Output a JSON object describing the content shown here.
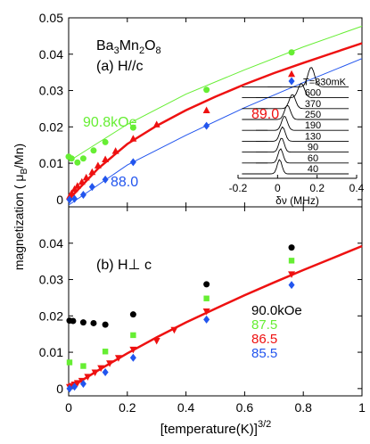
{
  "chart_data": [
    {
      "type": "scatter",
      "panel_label": "(a) H//c",
      "compound": {
        "base": "Ba",
        "s1": "3",
        "m": "Mn",
        "s2": "2",
        "o": "O",
        "s3": "8"
      },
      "xlim": [
        0,
        1
      ],
      "ylim": [
        -0.002,
        0.05
      ],
      "yticks": [
        "0",
        "0.01",
        "0.02",
        "0.03",
        "0.04",
        "0.05"
      ],
      "series": [
        {
          "name": "90.8kOe",
          "color": "#66ee33",
          "marker": "circle",
          "points": [
            [
              0.0,
              0.0118
            ],
            [
              0.01,
              0.0113
            ],
            [
              0.03,
              0.0102
            ],
            [
              0.05,
              0.0113
            ],
            [
              0.085,
              0.0135
            ],
            [
              0.125,
              0.0158
            ],
            [
              0.22,
              0.0198
            ],
            [
              0.47,
              0.0302
            ],
            [
              0.76,
              0.0405
            ]
          ],
          "fit": [
            [
              0,
              0.0105
            ],
            [
              0.2,
              0.0207
            ],
            [
              0.4,
              0.029
            ],
            [
              0.6,
              0.0357
            ],
            [
              0.8,
              0.042
            ],
            [
              1.0,
              0.0477
            ]
          ]
        },
        {
          "name": "89.0",
          "color": "#ee1111",
          "marker": "triangle",
          "points": [
            [
              0.003,
              0.0008
            ],
            [
              0.01,
              0.0017
            ],
            [
              0.02,
              0.0028
            ],
            [
              0.03,
              0.0037
            ],
            [
              0.045,
              0.0048
            ],
            [
              0.06,
              0.006
            ],
            [
              0.08,
              0.0075
            ],
            [
              0.1,
              0.0093
            ],
            [
              0.125,
              0.011
            ],
            [
              0.16,
              0.0133
            ],
            [
              0.22,
              0.0167
            ],
            [
              0.3,
              0.0206
            ],
            [
              0.47,
              0.0245
            ],
            [
              0.76,
              0.0345
            ]
          ],
          "fit": [
            [
              0,
              0.0
            ],
            [
              0.1,
              0.0085
            ],
            [
              0.2,
              0.0153
            ],
            [
              0.3,
              0.0203
            ],
            [
              0.4,
              0.0246
            ],
            [
              0.5,
              0.0283
            ],
            [
              0.6,
              0.0317
            ],
            [
              0.7,
              0.0348
            ],
            [
              0.8,
              0.0376
            ],
            [
              0.9,
              0.0403
            ],
            [
              1.0,
              0.043
            ]
          ]
        },
        {
          "name": "88.0",
          "color": "#2255ee",
          "marker": "diamond",
          "points": [
            [
              0.003,
              0.0
            ],
            [
              0.02,
              0.0002
            ],
            [
              0.05,
              0.0013
            ],
            [
              0.08,
              0.0035
            ],
            [
              0.125,
              0.0055
            ],
            [
              0.22,
              0.0103
            ],
            [
              0.47,
              0.0203
            ],
            [
              0.76,
              0.0326
            ]
          ],
          "fit": [
            [
              0,
              -0.0015
            ],
            [
              0.2,
              0.0095
            ],
            [
              0.4,
              0.0177
            ],
            [
              0.6,
              0.0253
            ],
            [
              0.8,
              0.0322
            ],
            [
              1.0,
              0.0388
            ]
          ]
        }
      ],
      "inset": {
        "type": "line",
        "xlabel": "δν (MHz)",
        "xlim": [
          -0.2,
          0.4
        ],
        "xticks": [
          "-0.2",
          "0",
          "0.2",
          "0.4"
        ],
        "temperatures": [
          "T=830mK",
          "600",
          "370",
          "250",
          "190",
          "130",
          "90",
          "60",
          "40"
        ],
        "peak_positions": [
          0.17,
          0.12,
          0.075,
          0.05,
          0.035,
          0.025,
          0.02,
          0.015,
          0.01
        ]
      }
    },
    {
      "type": "scatter",
      "panel_label": "(b) H⊥ c",
      "xlim": [
        0,
        1
      ],
      "ylim": [
        -0.002,
        0.05
      ],
      "xticks": [
        "0",
        "0.2",
        "0.4",
        "0.6",
        "0.8",
        "1"
      ],
      "yticks": [
        "0",
        "0.01",
        "0.02",
        "0.03",
        "0.04"
      ],
      "series": [
        {
          "name": "90.0kOe",
          "color": "#000000",
          "marker": "circle",
          "points": [
            [
              0.003,
              0.0187
            ],
            [
              0.015,
              0.0186
            ],
            [
              0.05,
              0.0182
            ],
            [
              0.085,
              0.018
            ],
            [
              0.125,
              0.0176
            ],
            [
              0.22,
              0.0204
            ],
            [
              0.47,
              0.0287
            ],
            [
              0.76,
              0.0388
            ]
          ]
        },
        {
          "name": "87.5",
          "color": "#66ee33",
          "marker": "square",
          "points": [
            [
              0.003,
              0.0072
            ],
            [
              0.05,
              0.0062
            ],
            [
              0.125,
              0.0102
            ],
            [
              0.22,
              0.0147
            ],
            [
              0.47,
              0.0248
            ],
            [
              0.76,
              0.0352
            ]
          ]
        },
        {
          "name": "86.5",
          "color": "#ee1111",
          "marker": "triangle-down",
          "points": [
            [
              0.003,
              0.0005
            ],
            [
              0.01,
              0.0008
            ],
            [
              0.02,
              0.0012
            ],
            [
              0.03,
              0.0016
            ],
            [
              0.045,
              0.0022
            ],
            [
              0.065,
              0.0033
            ],
            [
              0.09,
              0.0045
            ],
            [
              0.11,
              0.0057
            ],
            [
              0.14,
              0.007
            ],
            [
              0.17,
              0.0085
            ],
            [
              0.22,
              0.0108
            ],
            [
              0.3,
              0.0132
            ],
            [
              0.36,
              0.0162
            ],
            [
              0.47,
              0.0213
            ],
            [
              0.76,
              0.0315
            ]
          ],
          "fit": [
            [
              0,
              0.0
            ],
            [
              0.1,
              0.005
            ],
            [
              0.2,
              0.0097
            ],
            [
              0.3,
              0.0141
            ],
            [
              0.4,
              0.0182
            ],
            [
              0.5,
              0.022
            ],
            [
              0.6,
              0.0257
            ],
            [
              0.7,
              0.0292
            ],
            [
              0.8,
              0.0326
            ],
            [
              0.9,
              0.0359
            ],
            [
              1.0,
              0.0392
            ]
          ]
        },
        {
          "name": "85.5",
          "color": "#2255ee",
          "marker": "diamond",
          "points": [
            [
              0.003,
              0.0
            ],
            [
              0.02,
              0.0005
            ],
            [
              0.05,
              0.0013
            ],
            [
              0.125,
              0.0045
            ],
            [
              0.22,
              0.0085
            ],
            [
              0.47,
              0.019
            ],
            [
              0.76,
              0.0285
            ]
          ]
        }
      ]
    }
  ],
  "ylabel_parts": {
    "pre": "magnetization ( ",
    "mu": "μ",
    "sub": "B",
    "post": "/Mn)"
  },
  "xlabel_parts": {
    "text": "[temperature(K)]",
    "sup": "3/2"
  }
}
